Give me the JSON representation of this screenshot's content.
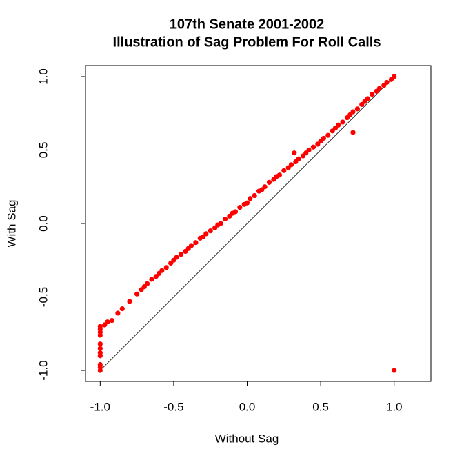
{
  "chart_data": {
    "type": "scatter",
    "title": "107th Senate 2001-2002",
    "subtitle": "Illustration of Sag Problem For Roll Calls",
    "x_label": "Without Sag",
    "y_label": "With Sag",
    "color": "#ff0000",
    "xlim": [
      -1.1,
      1.25
    ],
    "ylim": [
      -1.075,
      1.075
    ],
    "xticks": [
      {
        "value": -1,
        "label": "-1.0"
      },
      -0.5,
      {
        "value": 0,
        "label": "0.0"
      },
      0.5,
      {
        "value": 1,
        "label": "1.0"
      }
    ],
    "yticks": [
      {
        "value": -1,
        "label": "-1.0"
      },
      -0.5,
      {
        "value": 0,
        "label": "0.0"
      },
      0.5,
      {
        "value": 1,
        "label": "1.0"
      }
    ],
    "reference_line": {
      "x": [
        -1,
        1
      ],
      "y": [
        -1,
        1
      ]
    },
    "x": [
      -1,
      -1,
      -1,
      -1,
      -1,
      -1,
      -1,
      -1,
      -1,
      -1,
      -1,
      -0.97,
      -0.95,
      -0.92,
      -0.88,
      -0.85,
      -0.8,
      -0.75,
      -0.72,
      -0.7,
      -0.68,
      -0.65,
      -0.62,
      -0.6,
      -0.58,
      -0.55,
      -0.52,
      -0.5,
      -0.48,
      -0.45,
      -0.42,
      -0.4,
      -0.38,
      -0.35,
      -0.32,
      -0.3,
      -0.28,
      -0.25,
      -0.22,
      -0.2,
      -0.18,
      -0.15,
      -0.12,
      -0.1,
      -0.08,
      -0.05,
      -0.02,
      0,
      0.02,
      0.05,
      0.08,
      0.1,
      0.12,
      0.15,
      0.18,
      0.2,
      0.22,
      0.25,
      0.28,
      0.3,
      0.32,
      0.33,
      0.35,
      0.38,
      0.4,
      0.42,
      0.45,
      0.48,
      0.5,
      0.52,
      0.55,
      0.58,
      0.6,
      0.62,
      0.65,
      0.68,
      0.7,
      0.72,
      0.72,
      0.75,
      0.78,
      0.8,
      0.82,
      0.85,
      0.88,
      0.9,
      0.93,
      0.95,
      0.98,
      1,
      1
    ],
    "y": [
      -0.7,
      -0.72,
      -0.74,
      -0.76,
      -0.82,
      -0.85,
      -0.88,
      -0.9,
      -0.96,
      -0.98,
      -1,
      -0.69,
      -0.67,
      -0.66,
      -0.61,
      -0.58,
      -0.53,
      -0.48,
      -0.45,
      -0.43,
      -0.41,
      -0.38,
      -0.36,
      -0.34,
      -0.32,
      -0.3,
      -0.27,
      -0.25,
      -0.23,
      -0.21,
      -0.19,
      -0.17,
      -0.15,
      -0.13,
      -0.1,
      -0.09,
      -0.07,
      -0.05,
      -0.03,
      -0.01,
      0,
      0.03,
      0.05,
      0.07,
      0.08,
      0.11,
      0.13,
      0.14,
      0.17,
      0.19,
      0.22,
      0.23,
      0.25,
      0.28,
      0.3,
      0.32,
      0.33,
      0.36,
      0.38,
      0.4,
      0.48,
      0.42,
      0.44,
      0.46,
      0.48,
      0.5,
      0.52,
      0.54,
      0.56,
      0.58,
      0.6,
      0.63,
      0.65,
      0.67,
      0.69,
      0.72,
      0.74,
      0.62,
      0.76,
      0.78,
      0.81,
      0.83,
      0.85,
      0.88,
      0.9,
      0.92,
      0.94,
      0.96,
      0.98,
      1,
      -1
    ]
  }
}
